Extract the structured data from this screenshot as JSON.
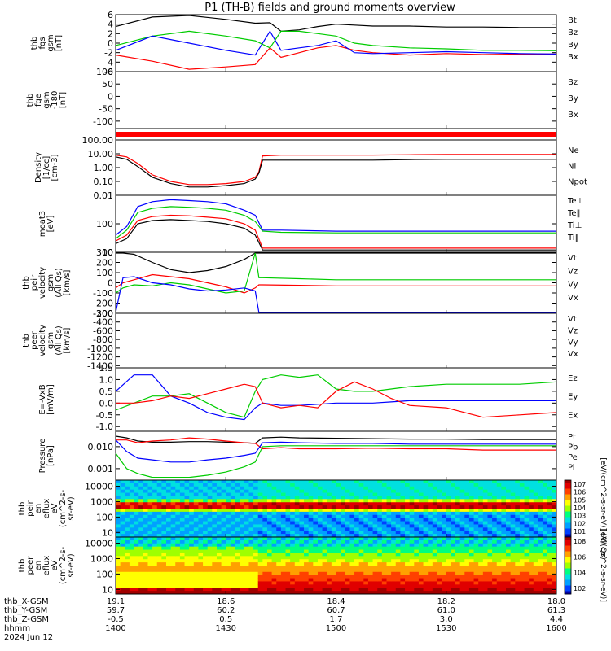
{
  "title": "P1 (TH-B) fields and ground moments overview",
  "colors": {
    "black": "#000000",
    "red": "#ff0000",
    "green": "#00cc00",
    "blue": "#0000ff"
  },
  "x_axis": {
    "rows": [
      {
        "label": "thb_X-GSM",
        "values": [
          "19.1",
          "18.6",
          "18.4",
          "18.2",
          "18.0"
        ]
      },
      {
        "label": "thb_Y-GSM",
        "values": [
          "59.7",
          "60.2",
          "60.7",
          "61.0",
          "61.3"
        ]
      },
      {
        "label": "thb_Z-GSM",
        "values": [
          "-0.5",
          "0.5",
          "1.7",
          "3.0",
          "4.4"
        ]
      },
      {
        "label": "hhmm",
        "values": [
          "1400",
          "1430",
          "1500",
          "1530",
          "1600"
        ]
      }
    ],
    "date": "2024 Jun 12"
  },
  "chart_data": [
    {
      "type": "line",
      "ylabel": [
        "thb",
        "fgs",
        "gsm",
        "[nT]"
      ],
      "ylim": [
        -6,
        6
      ],
      "ticks": [
        "6",
        "4",
        "2",
        "0",
        "-2",
        "-4",
        "-6"
      ],
      "tick_values": [
        6,
        4,
        2,
        0,
        -2,
        -4,
        -6
      ],
      "legend": [
        {
          "name": "Bt",
          "color": "#000000"
        },
        {
          "name": "Bz",
          "color": "#ff0000"
        },
        {
          "name": "By",
          "color": "#00cc00"
        },
        {
          "name": "Bx",
          "color": "#0000ff"
        }
      ],
      "x_minutes": [
        0,
        10,
        20,
        30,
        38,
        42,
        45,
        50,
        55,
        60,
        65,
        70,
        80,
        90,
        100,
        110,
        120
      ],
      "series": [
        {
          "name": "Bt",
          "color": "#000000",
          "values": [
            3.5,
            5.5,
            6.0,
            5.0,
            4.2,
            4.3,
            2.5,
            2.8,
            3.5,
            4.0,
            3.8,
            3.6,
            3.6,
            3.4,
            3.4,
            3.3,
            3.3
          ]
        },
        {
          "name": "Bz",
          "color": "#ff0000",
          "values": [
            -2.5,
            -3.8,
            -5.5,
            -5.0,
            -4.5,
            -1.0,
            -3.0,
            -2.0,
            -1.0,
            -0.5,
            -1.5,
            -2.0,
            -2.5,
            -2.2,
            -2.4,
            -2.3,
            -2.3
          ]
        },
        {
          "name": "By",
          "color": "#00cc00",
          "values": [
            -0.5,
            1.5,
            2.5,
            1.5,
            0.5,
            -1.0,
            2.5,
            2.5,
            2.0,
            1.5,
            0.0,
            -0.5,
            -1.0,
            -1.2,
            -1.5,
            -1.5,
            -1.6
          ]
        },
        {
          "name": "Bx",
          "color": "#0000ff",
          "values": [
            -1.5,
            1.5,
            0.0,
            -1.5,
            -2.5,
            2.5,
            -1.5,
            -1.0,
            -0.5,
            0.5,
            -2.0,
            -2.2,
            -2.0,
            -1.8,
            -2.0,
            -2.2,
            -2.3
          ]
        }
      ]
    },
    {
      "type": "line",
      "ylabel": [
        "thb",
        "fge",
        "gsm",
        "-180",
        "[nT]"
      ],
      "ylim": [
        -130,
        100
      ],
      "ticks": [
        "100",
        "50",
        "0",
        "-50",
        "-100"
      ],
      "tick_values": [
        100,
        50,
        0,
        -50,
        -100
      ],
      "legend": [
        {
          "name": "Bz",
          "color": "#ff0000"
        },
        {
          "name": "By",
          "color": "#00cc00"
        },
        {
          "name": "Bx",
          "color": "#0000ff"
        }
      ],
      "x_minutes": [],
      "series": []
    },
    {
      "type": "line",
      "log": true,
      "ylabel": [
        "Density",
        "[1/cc]",
        "[cm-3]"
      ],
      "ylim": [
        0.01,
        100
      ],
      "ticks": [
        "100.00",
        "10.00",
        "1.00",
        "0.10",
        "0.01"
      ],
      "tick_values": [
        100,
        10,
        1,
        0.1,
        0.01
      ],
      "legend": [
        {
          "name": "Ne",
          "color": "#ff0000"
        },
        {
          "name": "Ni",
          "color": "#000000"
        },
        {
          "name": "Npot",
          "color": "#0000ff"
        }
      ],
      "x_minutes": [
        0,
        3,
        6,
        10,
        15,
        20,
        25,
        30,
        35,
        38,
        39,
        40,
        45,
        50,
        60,
        70,
        80,
        90,
        100,
        110,
        120
      ],
      "series": [
        {
          "name": "Ne",
          "color": "#ff0000",
          "values": [
            8,
            6,
            2,
            0.3,
            0.1,
            0.06,
            0.06,
            0.07,
            0.1,
            0.2,
            0.5,
            7,
            8,
            8,
            8,
            8,
            8.5,
            9,
            9,
            9,
            9
          ]
        },
        {
          "name": "Ni",
          "color": "#000000",
          "values": [
            6,
            4,
            1.2,
            0.2,
            0.07,
            0.04,
            0.04,
            0.05,
            0.07,
            0.15,
            0.4,
            3.5,
            3.5,
            3.5,
            3.5,
            3.5,
            3.8,
            4,
            4,
            4,
            4
          ]
        }
      ]
    },
    {
      "type": "line",
      "log": true,
      "ylabel": [
        "moat3",
        "[eV]"
      ],
      "ylim": [
        10,
        1000
      ],
      "ticks": [
        "100",
        "10"
      ],
      "tick_values": [
        100,
        10
      ],
      "legend": [
        {
          "name": "Te⊥",
          "color": "#ff0000"
        },
        {
          "name": "Te‖",
          "color": "#000000"
        },
        {
          "name": "Ti⊥",
          "color": "#0000ff"
        },
        {
          "name": "Ti‖",
          "color": "#00cc00"
        }
      ],
      "x_minutes": [
        0,
        3,
        6,
        10,
        15,
        20,
        25,
        30,
        35,
        38,
        40,
        45,
        60,
        80,
        100,
        120
      ],
      "series": [
        {
          "name": "Ti⊥",
          "color": "#0000ff",
          "values": [
            40,
            80,
            400,
            600,
            700,
            650,
            600,
            500,
            300,
            200,
            60,
            60,
            55,
            55,
            55,
            55
          ]
        },
        {
          "name": "Ti‖",
          "color": "#00cc00",
          "values": [
            30,
            60,
            250,
            350,
            400,
            380,
            350,
            300,
            200,
            120,
            55,
            50,
            48,
            48,
            48,
            48
          ]
        },
        {
          "name": "Te⊥",
          "color": "#ff0000",
          "values": [
            25,
            40,
            130,
            180,
            200,
            190,
            170,
            150,
            100,
            60,
            14,
            14,
            14,
            14,
            14,
            14
          ]
        },
        {
          "name": "Te‖",
          "color": "#000000",
          "values": [
            20,
            30,
            100,
            130,
            140,
            130,
            120,
            100,
            70,
            40,
            12,
            12,
            12,
            12,
            12,
            12
          ]
        }
      ]
    },
    {
      "type": "line",
      "ylabel": [
        "thb",
        "peir",
        "velocity",
        "gsm",
        "(All Qs)",
        "[km/s]"
      ],
      "ylim": [
        -300,
        300
      ],
      "ticks": [
        "300",
        "200",
        "100",
        "0",
        "-100",
        "-200",
        "-300"
      ],
      "tick_values": [
        300,
        200,
        100,
        0,
        -100,
        -200,
        -300
      ],
      "legend": [
        {
          "name": "Vt",
          "color": "#000000"
        },
        {
          "name": "Vz",
          "color": "#ff0000"
        },
        {
          "name": "Vy",
          "color": "#00cc00"
        },
        {
          "name": "Vx",
          "color": "#0000ff"
        }
      ],
      "x_minutes": [
        0,
        2,
        5,
        10,
        15,
        20,
        25,
        30,
        35,
        38,
        39,
        40,
        50,
        60,
        80,
        100,
        120
      ],
      "series": [
        {
          "name": "Vt",
          "color": "#000000",
          "values": [
            300,
            300,
            280,
            200,
            130,
            100,
            120,
            160,
            230,
            300,
            300,
            320,
            320,
            320,
            320,
            320,
            320
          ]
        },
        {
          "name": "Vz",
          "color": "#ff0000",
          "values": [
            -50,
            0,
            30,
            80,
            60,
            40,
            0,
            -40,
            -100,
            -50,
            -20,
            -20,
            -25,
            -30,
            -30,
            -30,
            -30
          ]
        },
        {
          "name": "Vy",
          "color": "#00cc00",
          "values": [
            -100,
            -50,
            -20,
            -30,
            0,
            -20,
            -60,
            -100,
            -80,
            300,
            50,
            50,
            40,
            30,
            30,
            30,
            30
          ]
        },
        {
          "name": "Vx",
          "color": "#0000ff",
          "values": [
            -300,
            50,
            60,
            0,
            -20,
            -60,
            -80,
            -70,
            -50,
            -80,
            -300,
            -300,
            -300,
            -300,
            -300,
            -300,
            -300
          ]
        }
      ]
    },
    {
      "type": "line",
      "ylabel": [
        "thb",
        "peer",
        "velocity",
        "gsm",
        "(All Qs)",
        "[km/s]"
      ],
      "ylim": [
        -1450,
        -200
      ],
      "ticks": [
        "-200",
        "-400",
        "-600",
        "-800",
        "-1000",
        "-1200",
        "-1400"
      ],
      "tick_values": [
        -200,
        -400,
        -600,
        -800,
        -1000,
        -1200,
        -1400
      ],
      "legend": [
        {
          "name": "Vt",
          "color": "#000000"
        },
        {
          "name": "Vz",
          "color": "#ff0000"
        },
        {
          "name": "Vy",
          "color": "#00cc00"
        },
        {
          "name": "Vx",
          "color": "#0000ff"
        }
      ],
      "x_minutes": [],
      "series": []
    },
    {
      "type": "line",
      "ylabel": [
        "E=-VxB",
        "[mV/m]"
      ],
      "ylim": [
        -1.2,
        1.5
      ],
      "ticks": [
        "1.5",
        "1.0",
        "0.5",
        "0.0",
        "-0.5",
        "-1.0"
      ],
      "tick_values": [
        1.5,
        1.0,
        0.5,
        0.0,
        -0.5,
        -1.0
      ],
      "legend": [
        {
          "name": "Ez",
          "color": "#ff0000"
        },
        {
          "name": "Ey",
          "color": "#00cc00"
        },
        {
          "name": "Ex",
          "color": "#0000ff"
        }
      ],
      "x_minutes": [
        0,
        5,
        10,
        15,
        20,
        25,
        30,
        35,
        38,
        40,
        45,
        50,
        55,
        60,
        65,
        70,
        75,
        80,
        90,
        100,
        110,
        120
      ],
      "series": [
        {
          "name": "Ex",
          "color": "#0000ff",
          "values": [
            0.5,
            1.2,
            1.2,
            0.3,
            0.0,
            -0.4,
            -0.6,
            -0.7,
            -0.2,
            0.0,
            -0.1,
            -0.1,
            -0.05,
            0.0,
            0.0,
            0.0,
            0.05,
            0.1,
            0.1,
            0.1,
            0.1,
            0.1
          ]
        },
        {
          "name": "Ey",
          "color": "#00cc00",
          "values": [
            -0.3,
            0.0,
            0.3,
            0.3,
            0.4,
            0.0,
            -0.4,
            -0.6,
            0.5,
            1.0,
            1.2,
            1.1,
            1.2,
            0.6,
            0.5,
            0.5,
            0.6,
            0.7,
            0.8,
            0.8,
            0.8,
            0.9
          ]
        },
        {
          "name": "Ez",
          "color": "#ff0000",
          "values": [
            0.0,
            0.0,
            0.1,
            0.3,
            0.2,
            0.4,
            0.6,
            0.8,
            0.7,
            0.0,
            -0.2,
            -0.1,
            -0.2,
            0.5,
            0.9,
            0.6,
            0.2,
            -0.1,
            -0.2,
            -0.6,
            -0.5,
            -0.4
          ]
        }
      ]
    },
    {
      "type": "line",
      "log": true,
      "ylabel": [
        "Pressure",
        "[nPa]"
      ],
      "ylim": [
        0.0003,
        0.05
      ],
      "ticks": [
        "0.010",
        "0.001"
      ],
      "tick_values": [
        0.01,
        0.001
      ],
      "legend": [
        {
          "name": "Pt",
          "color": "#000000"
        },
        {
          "name": "Pb",
          "color": "#ff0000"
        },
        {
          "name": "Pe",
          "color": "#00cc00"
        },
        {
          "name": "Pi",
          "color": "#0000ff"
        }
      ],
      "x_minutes": [
        0,
        3,
        6,
        10,
        15,
        20,
        25,
        30,
        35,
        38,
        40,
        45,
        50,
        60,
        70,
        80,
        90,
        100,
        110,
        120
      ],
      "series": [
        {
          "name": "Pt",
          "color": "#000000",
          "values": [
            0.03,
            0.025,
            0.018,
            0.016,
            0.016,
            0.017,
            0.017,
            0.016,
            0.015,
            0.014,
            0.025,
            0.027,
            0.025,
            0.024,
            0.023,
            0.022,
            0.022,
            0.021,
            0.021,
            0.021
          ]
        },
        {
          "name": "Pb",
          "color": "#ff0000",
          "values": [
            0.02,
            0.02,
            0.015,
            0.018,
            0.02,
            0.025,
            0.022,
            0.018,
            0.015,
            0.014,
            0.008,
            0.009,
            0.008,
            0.008,
            0.0085,
            0.008,
            0.008,
            0.007,
            0.007,
            0.007
          ]
        },
        {
          "name": "Pe",
          "color": "#00cc00",
          "values": [
            0.005,
            0.001,
            0.0006,
            0.0004,
            0.0004,
            0.0004,
            0.0005,
            0.0007,
            0.0012,
            0.002,
            0.01,
            0.011,
            0.011,
            0.011,
            0.011,
            0.011,
            0.011,
            0.011,
            0.011,
            0.011
          ]
        },
        {
          "name": "Pi",
          "color": "#0000ff",
          "values": [
            0.02,
            0.006,
            0.003,
            0.0025,
            0.002,
            0.002,
            0.0025,
            0.003,
            0.004,
            0.005,
            0.015,
            0.016,
            0.015,
            0.014,
            0.014,
            0.013,
            0.013,
            0.013,
            0.013,
            0.013
          ]
        }
      ]
    },
    {
      "type": "heatmap",
      "ylabel": [
        "thb",
        "peir",
        "en",
        "eflux",
        "eV",
        "(cm^2-s-",
        "sr-eV)"
      ],
      "ticks": [
        "10000",
        "1000",
        "100",
        "10"
      ],
      "tick_values": [
        10000,
        1000,
        100,
        10
      ],
      "ylim": [
        5,
        25000
      ],
      "colorbar": {
        "labels": [
          "10^7",
          "10^6",
          "10^5",
          "10^4",
          "10^3",
          "10^2",
          "10^1"
        ],
        "title": "[eV/(cm^2-s-sr-eV)] (All Qs)"
      }
    },
    {
      "type": "heatmap",
      "ylabel": [
        "thb",
        "peer",
        "en",
        "eflux",
        "eV",
        "(cm^2-s-",
        "sr-eV)"
      ],
      "ticks": [
        "10000",
        "1000",
        "100",
        "10"
      ],
      "tick_values": [
        10000,
        1000,
        100,
        10
      ],
      "ylim": [
        5,
        25000
      ],
      "colorbar": {
        "labels": [
          "10^8",
          "10^6",
          "10^4",
          "10^2"
        ],
        "title": "[eV/(cm^2-s-sr-eV)]"
      }
    }
  ]
}
